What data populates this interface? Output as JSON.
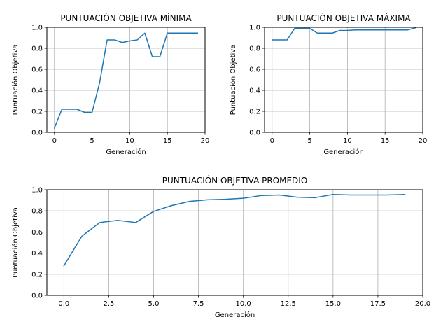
{
  "chart_data": [
    {
      "type": "line",
      "title": "PUNTUACIÓN OBJETIVA MÍNIMA",
      "xlabel": "Generación",
      "ylabel": "Puntuación Objetiva",
      "xlim": [
        -1,
        20
      ],
      "ylim": [
        0,
        1
      ],
      "xticks": [
        "0",
        "5",
        "10",
        "15",
        "20"
      ],
      "yticks": [
        "0.0",
        "0.2",
        "0.4",
        "0.6",
        "0.8",
        "1.0"
      ],
      "grid": true,
      "color": "#1f77b4",
      "x": [
        0,
        1,
        2,
        3,
        4,
        5,
        6,
        7,
        8,
        9,
        10,
        11,
        12,
        13,
        14,
        15,
        16,
        17,
        18,
        19
      ],
      "y": [
        0.04,
        0.22,
        0.22,
        0.22,
        0.19,
        0.19,
        0.47,
        0.88,
        0.88,
        0.855,
        0.87,
        0.88,
        0.945,
        0.72,
        0.72,
        0.945,
        0.945,
        0.945,
        0.945,
        0.945
      ]
    },
    {
      "type": "line",
      "title": "PUNTUACIÓN OBJETIVA MÁXIMA",
      "xlabel": "Generación",
      "ylabel": "Puntuación Objetiva",
      "xlim": [
        -1,
        20
      ],
      "ylim": [
        0,
        1
      ],
      "xticks": [
        "0",
        "5",
        "10",
        "15",
        "20"
      ],
      "yticks": [
        "0.0",
        "0.2",
        "0.4",
        "0.6",
        "0.8",
        "1.0"
      ],
      "grid": true,
      "color": "#1f77b4",
      "x": [
        0,
        1,
        2,
        3,
        4,
        5,
        6,
        7,
        8,
        9,
        10,
        11,
        12,
        13,
        14,
        15,
        16,
        17,
        18,
        19
      ],
      "y": [
        0.88,
        0.88,
        0.88,
        0.99,
        0.99,
        0.99,
        0.945,
        0.945,
        0.945,
        0.97,
        0.97,
        0.975,
        0.975,
        0.975,
        0.975,
        0.975,
        0.975,
        0.975,
        0.975,
        0.995
      ]
    },
    {
      "type": "line",
      "title": "PUNTUACIÓN OBJETIVA PROMEDIO",
      "xlabel": "Generación",
      "ylabel": "Puntuación Objetiva",
      "xlim": [
        -0.95,
        20
      ],
      "ylim": [
        0,
        1
      ],
      "xticks": [
        "0.0",
        "2.5",
        "5.0",
        "7.5",
        "10.0",
        "12.5",
        "15.0",
        "17.5",
        "20.0"
      ],
      "yticks": [
        "0.0",
        "0.2",
        "0.4",
        "0.6",
        "0.8",
        "1.0"
      ],
      "grid": true,
      "color": "#1f77b4",
      "x": [
        0,
        1,
        2,
        3,
        4,
        5,
        6,
        7,
        8,
        9,
        10,
        11,
        12,
        13,
        14,
        15,
        16,
        17,
        18,
        19
      ],
      "y": [
        0.28,
        0.56,
        0.69,
        0.71,
        0.69,
        0.795,
        0.85,
        0.89,
        0.905,
        0.91,
        0.92,
        0.945,
        0.95,
        0.93,
        0.925,
        0.955,
        0.95,
        0.95,
        0.95,
        0.955
      ]
    }
  ]
}
